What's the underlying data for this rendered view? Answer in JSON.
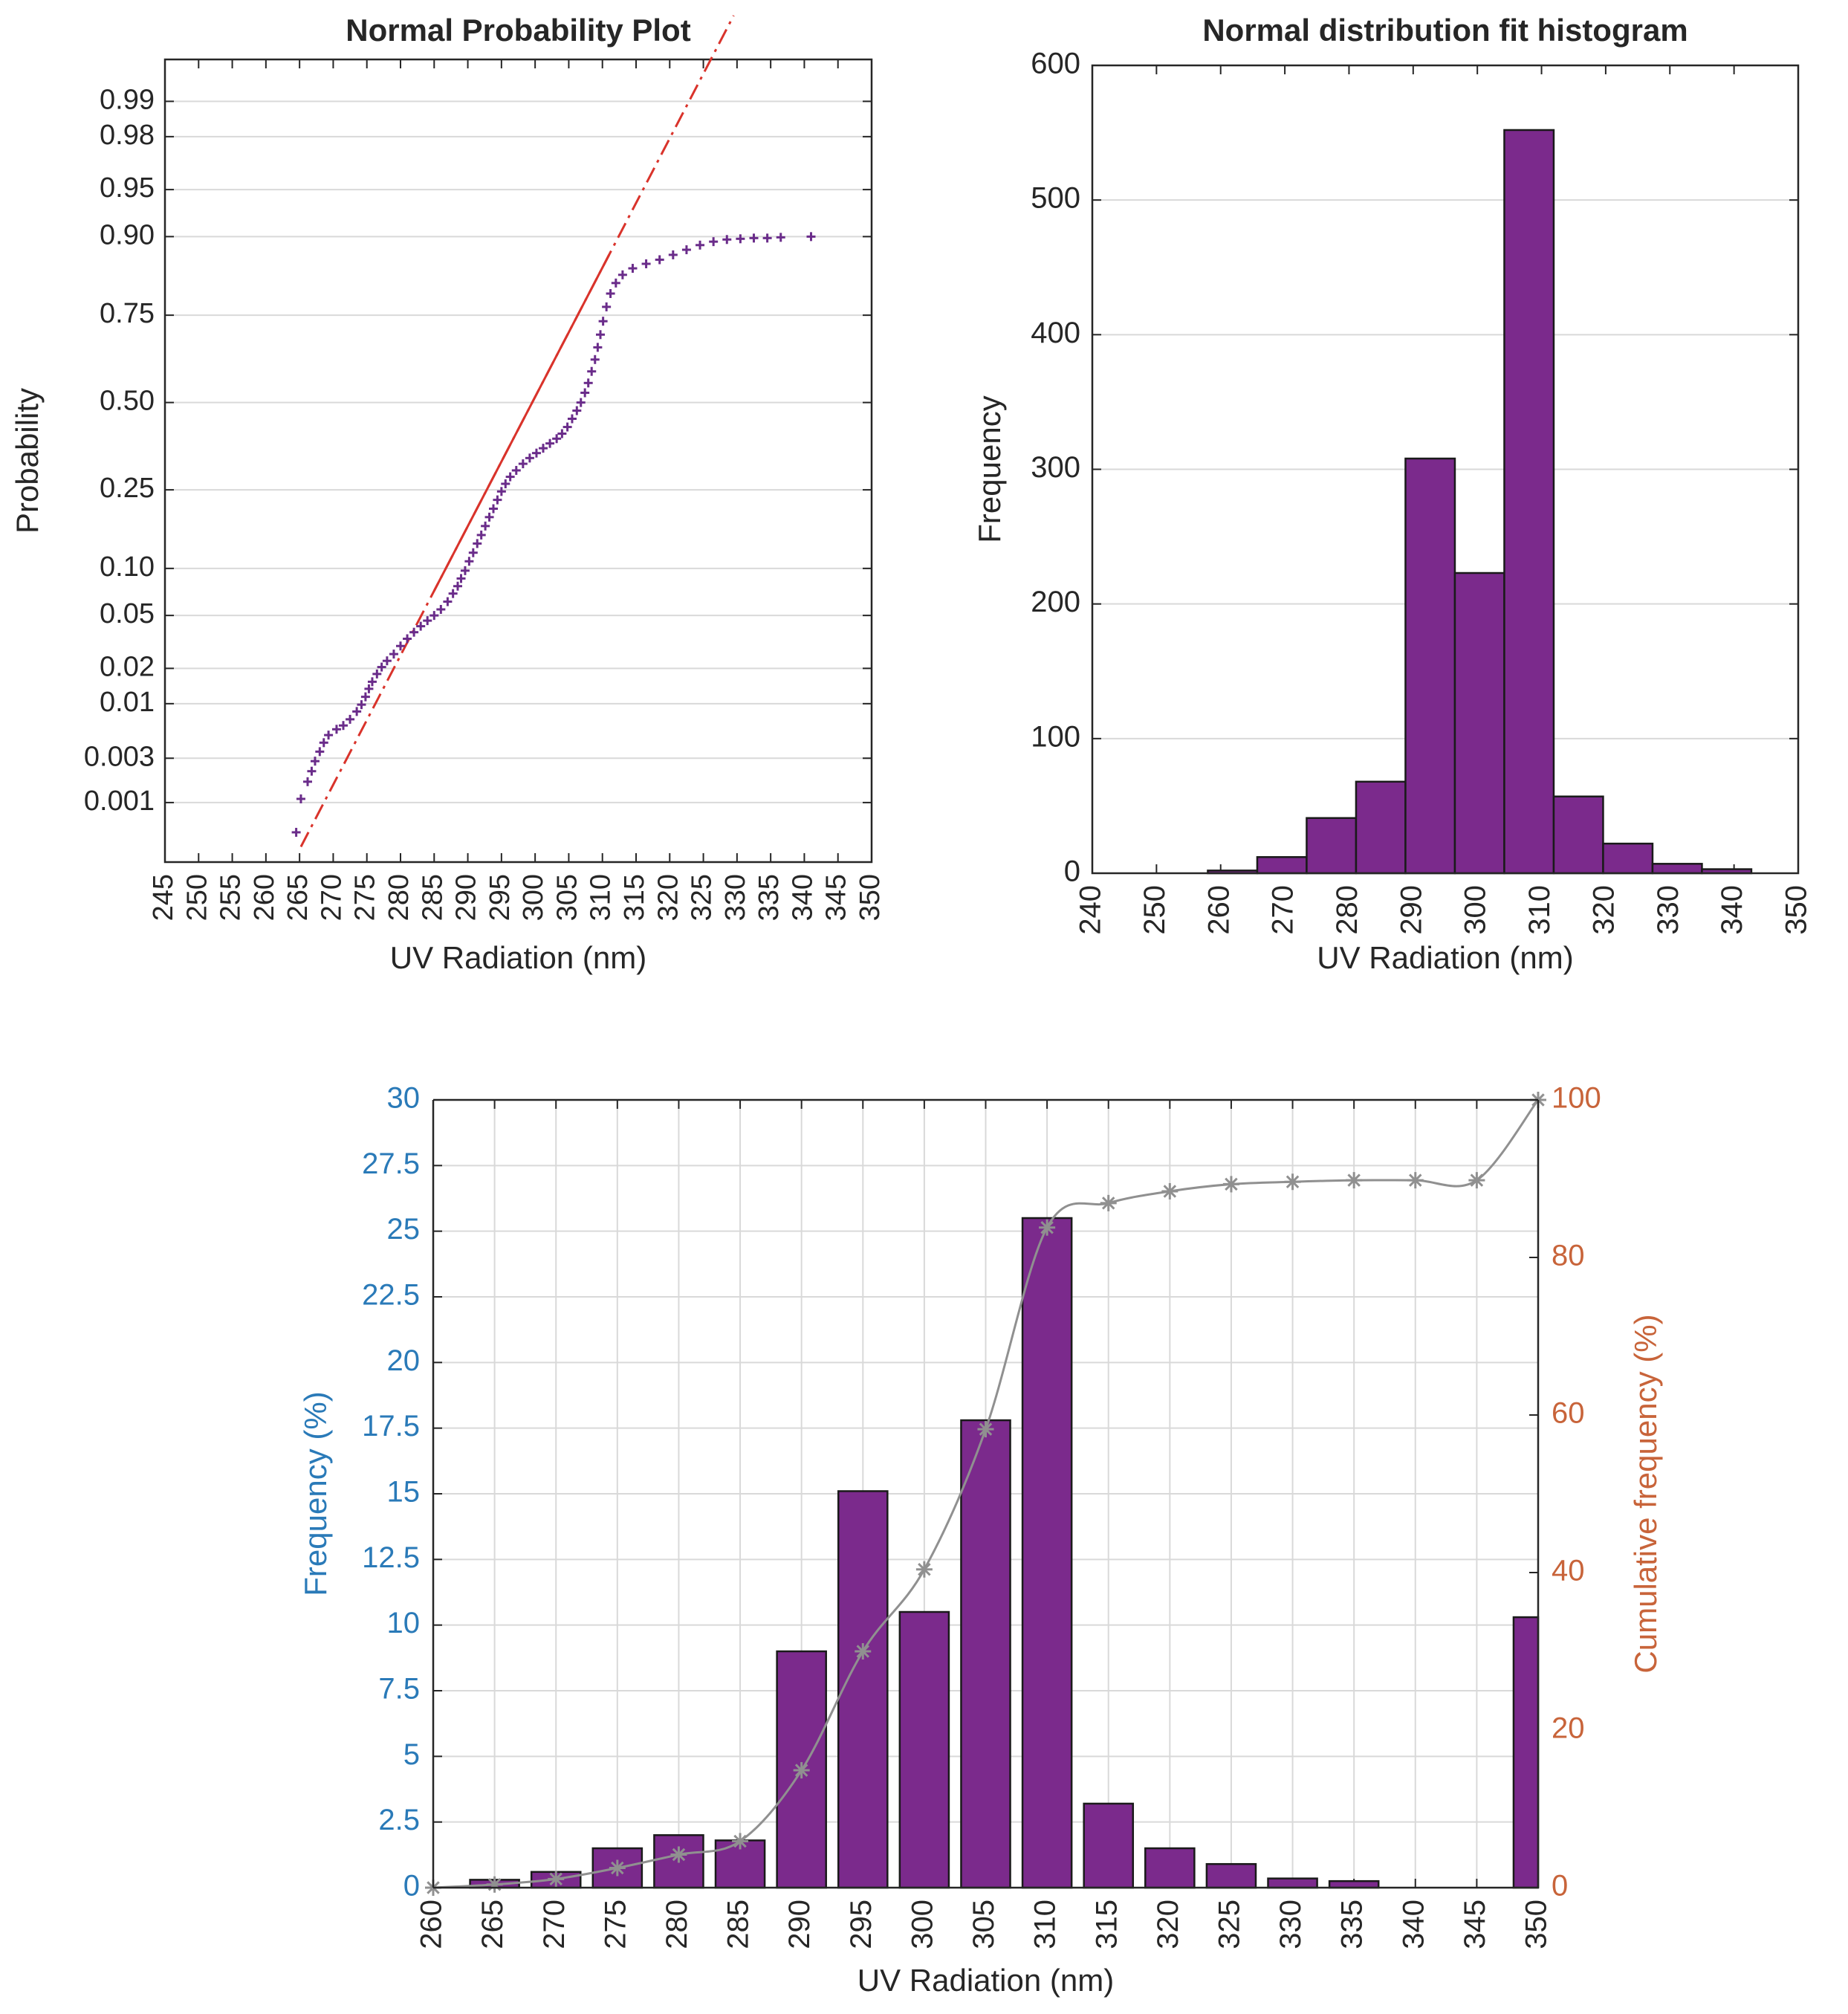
{
  "colors": {
    "bar": "#7b2a8c",
    "bar_edge": "#1a1a1a",
    "points": "#6a2c8a",
    "fit_line": "#d9332b",
    "left_axis": "#2a7ab8",
    "right_axis": "#c8643a",
    "cumulative": "#909090",
    "grid": "#d9d9d9",
    "axis": "#262626"
  },
  "chart_data": [
    {
      "type": "scatter",
      "title": "Normal Probability Plot",
      "xlabel": "UV Radiation (nm)",
      "ylabel": "Probability",
      "xlim": [
        245,
        350
      ],
      "xticks": [
        "245",
        "250",
        "255",
        "260",
        "265",
        "270",
        "275",
        "280",
        "285",
        "290",
        "295",
        "300",
        "305",
        "310",
        "315",
        "320",
        "325",
        "330",
        "335",
        "340",
        "345",
        "350"
      ],
      "yticks": [
        "0.99",
        "0.98",
        "0.95",
        "0.90",
        "0.75",
        "0.50",
        "0.25",
        "0.10",
        "0.05",
        "0.02",
        "0.01",
        "0.003",
        "0.001"
      ],
      "grid": true,
      "fit_line": {
        "style": "dash-dot",
        "from": {
          "x": 265.2,
          "prob": "0.0003"
        },
        "to": {
          "x": 329.5,
          "prob": "0.9986"
        }
      },
      "points": [
        {
          "x": 264.5,
          "p": 0.00045
        },
        {
          "x": 265.2,
          "p": 0.0011
        },
        {
          "x": 266.2,
          "p": 0.0017
        },
        {
          "x": 266.8,
          "p": 0.0022
        },
        {
          "x": 267.3,
          "p": 0.0028
        },
        {
          "x": 268.0,
          "p": 0.0035
        },
        {
          "x": 268.6,
          "p": 0.0043
        },
        {
          "x": 269.3,
          "p": 0.0051
        },
        {
          "x": 270.5,
          "p": 0.0058
        },
        {
          "x": 271.5,
          "p": 0.0063
        },
        {
          "x": 272.5,
          "p": 0.0072
        },
        {
          "x": 273.5,
          "p": 0.0085
        },
        {
          "x": 274.2,
          "p": 0.0098
        },
        {
          "x": 274.8,
          "p": 0.0115
        },
        {
          "x": 275.3,
          "p": 0.0135
        },
        {
          "x": 275.8,
          "p": 0.0155
        },
        {
          "x": 276.5,
          "p": 0.018
        },
        {
          "x": 277.2,
          "p": 0.0205
        },
        {
          "x": 278.0,
          "p": 0.023
        },
        {
          "x": 279.0,
          "p": 0.026
        },
        {
          "x": 280.0,
          "p": 0.03
        },
        {
          "x": 281.0,
          "p": 0.034
        },
        {
          "x": 282.0,
          "p": 0.038
        },
        {
          "x": 283.0,
          "p": 0.042
        },
        {
          "x": 284.0,
          "p": 0.046
        },
        {
          "x": 285.0,
          "p": 0.05
        },
        {
          "x": 286.0,
          "p": 0.055
        },
        {
          "x": 287.0,
          "p": 0.062
        },
        {
          "x": 287.8,
          "p": 0.07
        },
        {
          "x": 288.5,
          "p": 0.078
        },
        {
          "x": 289.0,
          "p": 0.087
        },
        {
          "x": 289.6,
          "p": 0.097
        },
        {
          "x": 290.2,
          "p": 0.11
        },
        {
          "x": 290.8,
          "p": 0.123
        },
        {
          "x": 291.4,
          "p": 0.138
        },
        {
          "x": 292.0,
          "p": 0.153
        },
        {
          "x": 292.6,
          "p": 0.17
        },
        {
          "x": 293.2,
          "p": 0.188
        },
        {
          "x": 293.8,
          "p": 0.206
        },
        {
          "x": 294.4,
          "p": 0.226
        },
        {
          "x": 295.0,
          "p": 0.246
        },
        {
          "x": 295.6,
          "p": 0.265
        },
        {
          "x": 296.3,
          "p": 0.283
        },
        {
          "x": 297.2,
          "p": 0.3
        },
        {
          "x": 298.2,
          "p": 0.318
        },
        {
          "x": 299.2,
          "p": 0.334
        },
        {
          "x": 300.2,
          "p": 0.348
        },
        {
          "x": 301.2,
          "p": 0.362
        },
        {
          "x": 302.2,
          "p": 0.376
        },
        {
          "x": 303.2,
          "p": 0.39
        },
        {
          "x": 304.0,
          "p": 0.405
        },
        {
          "x": 304.8,
          "p": 0.425
        },
        {
          "x": 305.5,
          "p": 0.45
        },
        {
          "x": 306.2,
          "p": 0.475
        },
        {
          "x": 306.8,
          "p": 0.5
        },
        {
          "x": 307.4,
          "p": 0.53
        },
        {
          "x": 307.9,
          "p": 0.56
        },
        {
          "x": 308.4,
          "p": 0.595
        },
        {
          "x": 308.9,
          "p": 0.63
        },
        {
          "x": 309.3,
          "p": 0.665
        },
        {
          "x": 309.7,
          "p": 0.7
        },
        {
          "x": 310.1,
          "p": 0.735
        },
        {
          "x": 310.6,
          "p": 0.77
        },
        {
          "x": 311.2,
          "p": 0.8
        },
        {
          "x": 312.0,
          "p": 0.822
        },
        {
          "x": 313.0,
          "p": 0.838
        },
        {
          "x": 314.5,
          "p": 0.85
        },
        {
          "x": 316.5,
          "p": 0.858
        },
        {
          "x": 318.5,
          "p": 0.865
        },
        {
          "x": 320.5,
          "p": 0.873
        },
        {
          "x": 322.5,
          "p": 0.881
        },
        {
          "x": 324.5,
          "p": 0.888
        },
        {
          "x": 326.5,
          "p": 0.893
        },
        {
          "x": 328.5,
          "p": 0.896
        },
        {
          "x": 330.5,
          "p": 0.897
        },
        {
          "x": 332.5,
          "p": 0.898
        },
        {
          "x": 334.5,
          "p": 0.898
        },
        {
          "x": 336.5,
          "p": 0.899
        },
        {
          "x": 341.0,
          "p": 0.9
        }
      ]
    },
    {
      "type": "bar",
      "title": "Normal distribution fit histogram",
      "xlabel": "UV Radiation (nm)",
      "ylabel": "Frequency",
      "xlim": [
        240,
        350
      ],
      "ylim": [
        0,
        600
      ],
      "xticks": [
        "240",
        "250",
        "260",
        "270",
        "280",
        "290",
        "300",
        "310",
        "320",
        "330",
        "340",
        "350"
      ],
      "yticks": [
        "0",
        "100",
        "200",
        "300",
        "400",
        "500",
        "600"
      ],
      "grid": true,
      "bins": [
        {
          "from": 258.0,
          "to": 265.7,
          "value": 2
        },
        {
          "from": 265.7,
          "to": 273.4,
          "value": 12
        },
        {
          "from": 273.4,
          "to": 281.1,
          "value": 41
        },
        {
          "from": 281.1,
          "to": 288.8,
          "value": 68
        },
        {
          "from": 288.8,
          "to": 296.5,
          "value": 308
        },
        {
          "from": 296.5,
          "to": 304.2,
          "value": 223
        },
        {
          "from": 304.2,
          "to": 311.9,
          "value": 552
        },
        {
          "from": 311.9,
          "to": 319.6,
          "value": 57
        },
        {
          "from": 319.6,
          "to": 327.3,
          "value": 22
        },
        {
          "from": 327.3,
          "to": 335.0,
          "value": 7
        },
        {
          "from": 335.0,
          "to": 342.7,
          "value": 3
        }
      ]
    },
    {
      "type": "bar",
      "title": "",
      "xlabel": "UV Radiation (nm)",
      "ylabel": "Frequency (%)",
      "y2label": "Cumulative frequency (%)",
      "ylim": [
        0,
        30
      ],
      "y2lim": [
        0,
        100
      ],
      "categories": [
        "260",
        "265",
        "270",
        "275",
        "280",
        "285",
        "290",
        "295",
        "300",
        "305",
        "310",
        "315",
        "320",
        "325",
        "330",
        "335",
        "340",
        "345",
        "350"
      ],
      "yticks": [
        "0",
        "2.5",
        "5",
        "7.5",
        "10",
        "12.5",
        "15",
        "17.5",
        "20",
        "22.5",
        "25",
        "27.5",
        "30"
      ],
      "y2ticks": [
        "0",
        "20",
        "40",
        "60",
        "80",
        "100"
      ],
      "grid": true,
      "series": [
        {
          "name": "Frequency (%)",
          "type": "bar",
          "values": [
            0,
            0.3,
            0.6,
            1.5,
            2.0,
            1.8,
            9.0,
            15.1,
            10.5,
            17.8,
            25.5,
            3.2,
            1.5,
            0.9,
            0.35,
            0.25,
            0,
            0,
            10.3
          ]
        },
        {
          "name": "Cumulative frequency (%)",
          "type": "line",
          "axis": "right",
          "marker": "asterisk",
          "values": [
            0,
            0.4,
            1.1,
            2.5,
            4.2,
            5.9,
            14.9,
            30.0,
            40.4,
            58.2,
            83.8,
            86.9,
            88.4,
            89.3,
            89.6,
            89.8,
            89.8,
            89.8,
            100
          ]
        }
      ]
    }
  ]
}
